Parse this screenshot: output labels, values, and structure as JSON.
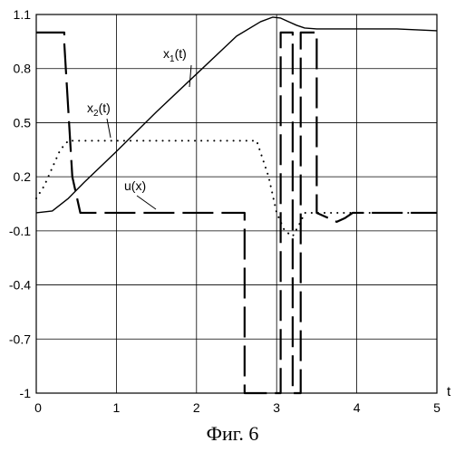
{
  "caption": "Фиг. 6",
  "chart_data": {
    "type": "line",
    "xlabel": "t",
    "ylabel": "",
    "xlim": [
      0,
      5
    ],
    "ylim": [
      -1,
      1.1
    ],
    "grid": true,
    "x_ticks": [
      "0",
      "1",
      "2",
      "3",
      "4",
      "5"
    ],
    "y_ticks": [
      "1.1",
      "0.8",
      "0.5",
      "0.2",
      "-0.1",
      "-0.4",
      "-0.7",
      "-1"
    ],
    "series": [
      {
        "name": "x1(t)",
        "label_main": "x",
        "label_sub": "1",
        "label_tail": "(t)",
        "line_style": "solid",
        "x": [
          0,
          0.2,
          0.4,
          0.6,
          1.0,
          1.5,
          2.0,
          2.5,
          2.8,
          2.95,
          3.05,
          3.15,
          3.25,
          3.35,
          3.5,
          4.0,
          4.5,
          5.0
        ],
        "y": [
          0.0,
          0.01,
          0.08,
          0.17,
          0.34,
          0.56,
          0.77,
          0.98,
          1.06,
          1.085,
          1.08,
          1.06,
          1.04,
          1.025,
          1.02,
          1.02,
          1.02,
          1.01
        ]
      },
      {
        "name": "x2(t)",
        "label_main": "x",
        "label_sub": "2",
        "label_tail": "(t)",
        "line_style": "dotted",
        "x": [
          0,
          0.1,
          0.2,
          0.3,
          0.4,
          0.5,
          0.7,
          1.0,
          1.5,
          2.0,
          2.5,
          2.75,
          2.9,
          3.0,
          3.1,
          3.2,
          3.3,
          3.35,
          3.4,
          3.5,
          3.6,
          4.0,
          4.5,
          5.0
        ],
        "y": [
          0.08,
          0.15,
          0.25,
          0.35,
          0.4,
          0.4,
          0.4,
          0.4,
          0.4,
          0.4,
          0.4,
          0.4,
          0.2,
          0.0,
          -0.1,
          -0.13,
          -0.05,
          0.0,
          0.0,
          0.0,
          0.0,
          0.0,
          0.0,
          0.0
        ]
      },
      {
        "name": "u(x)",
        "label_main": "u(x)",
        "label_sub": "",
        "label_tail": "",
        "line_style": "dashed",
        "x": [
          0,
          0.35,
          0.35,
          0.45,
          0.55,
          1.0,
          1.5,
          2.0,
          2.6,
          2.6,
          3.05,
          3.05,
          3.2,
          3.2,
          3.3,
          3.3,
          3.5,
          3.5,
          3.75,
          3.85,
          3.95,
          4.5,
          5.0
        ],
        "y": [
          1.0,
          1.0,
          0.94,
          0.2,
          0.0,
          0.0,
          0.0,
          0.0,
          0.0,
          -1.0,
          -1.0,
          1.0,
          1.0,
          -1.0,
          -1.0,
          1.0,
          1.0,
          0.0,
          -0.05,
          -0.03,
          0.0,
          0.0,
          0.0
        ]
      }
    ]
  }
}
